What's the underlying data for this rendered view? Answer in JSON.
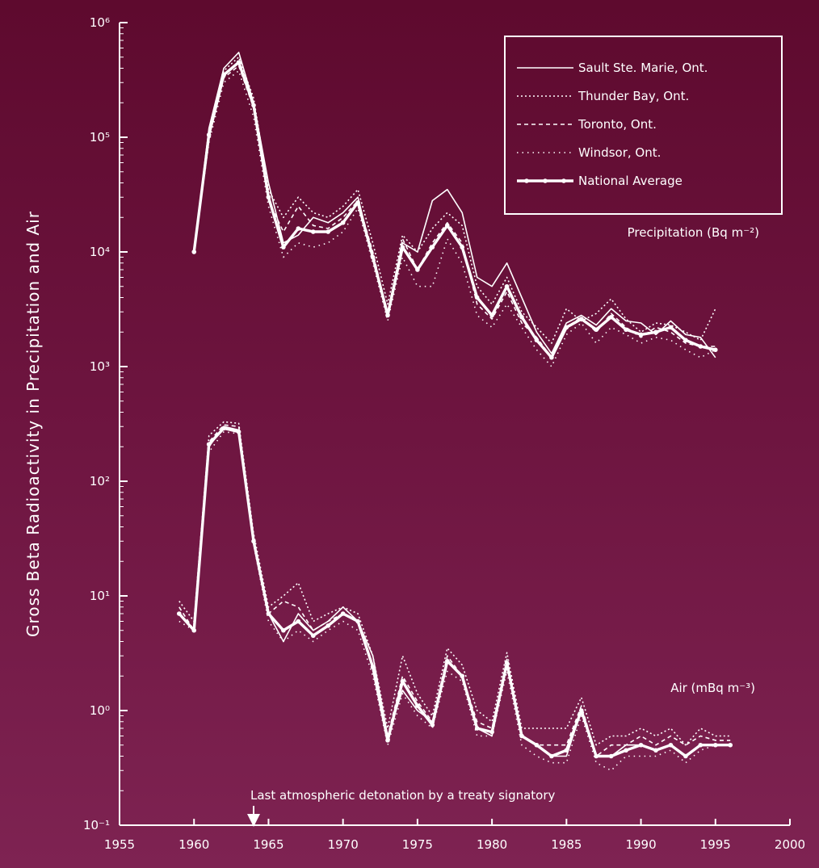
{
  "chart_data": {
    "type": "line",
    "title": "",
    "xlabel": "",
    "ylabel": "Gross Beta Radioactivity in Precipitation and Air",
    "xlim": [
      1955,
      2000
    ],
    "x_ticks": [
      1955,
      1960,
      1965,
      1970,
      1975,
      1980,
      1985,
      1990,
      1995,
      2000
    ],
    "x_tick_labels": [
      "1955",
      "1960",
      "1965",
      "1970",
      "1975",
      "1980",
      "1985",
      "1990",
      "1995",
      "2000"
    ],
    "y_scale": "log",
    "ylim": [
      0.1,
      1000000
    ],
    "y_ticks": [
      0.1,
      1,
      10,
      100,
      1000,
      10000,
      100000,
      1000000
    ],
    "y_tick_labels": [
      "10⁻¹",
      "10⁰",
      "10¹",
      "10²",
      "10³",
      "10⁴",
      "10⁵",
      "10⁶"
    ],
    "grid": false,
    "legend_position": "top-right",
    "legend": [
      "Sault Ste. Marie, Ont.",
      "Thunder Bay, Ont.",
      "Toronto, Ont.",
      "Windsor, Ont.",
      "National Average"
    ],
    "groups": [
      {
        "label": "Precipitation (Bq m⁻²)",
        "series": [
          {
            "name": "Sault Ste. Marie, Ont.",
            "x": [
              1960,
              1961,
              1962,
              1963,
              1964,
              1965,
              1966,
              1967,
              1968,
              1969,
              1970,
              1971,
              1972,
              1973,
              1974,
              1975,
              1976,
              1977,
              1978,
              1979,
              1980,
              1981,
              1982,
              1983,
              1984,
              1985,
              1986,
              1987,
              1988,
              1989,
              1990,
              1991,
              1992,
              1993,
              1994,
              1995
            ],
            "y": [
              10000,
              120000,
              400000,
              550000,
              200000,
              40000,
              12000,
              14000,
              20000,
              18000,
              22000,
              30000,
              9000,
              3000,
              12000,
              10000,
              28000,
              35000,
              22000,
              6000,
              5000,
              8000,
              4000,
              2000,
              1300,
              2400,
              2800,
              2300,
              3200,
              2500,
              2400,
              1900,
              2500,
              1900,
              1800,
              1200
            ]
          },
          {
            "name": "Thunder Bay, Ont.",
            "x": [
              1960,
              1961,
              1962,
              1963,
              1964,
              1965,
              1966,
              1967,
              1968,
              1969,
              1970,
              1971,
              1972,
              1973,
              1974,
              1975,
              1976,
              1977,
              1978,
              1979,
              1980,
              1981,
              1982,
              1983,
              1984,
              1985,
              1986,
              1987,
              1988,
              1989,
              1990,
              1991,
              1992,
              1993,
              1994,
              1995
            ],
            "y": [
              10000,
              110000,
              380000,
              500000,
              220000,
              35000,
              20000,
              30000,
              22000,
              20000,
              25000,
              35000,
              12000,
              3500,
              14000,
              10000,
              16000,
              22000,
              17000,
              5000,
              3500,
              6000,
              3000,
              2200,
              1600,
              3200,
              2500,
              2900,
              3900,
              2600,
              2000,
              2400,
              2300,
              2000,
              1700,
              3200
            ]
          },
          {
            "name": "Toronto, Ont.",
            "x": [
              1960,
              1961,
              1962,
              1963,
              1964,
              1965,
              1966,
              1967,
              1968,
              1969,
              1970,
              1971,
              1972,
              1973,
              1974,
              1975,
              1976,
              1977,
              1978,
              1979,
              1980,
              1981,
              1982,
              1983,
              1984,
              1985,
              1986,
              1987,
              1988,
              1989,
              1990,
              1991,
              1992,
              1993,
              1994,
              1995
            ],
            "y": [
              10000,
              100000,
              330000,
              420000,
              180000,
              28000,
              15000,
              25000,
              17000,
              16000,
              20000,
              28000,
              10000,
              2800,
              13000,
              7000,
              12000,
              18000,
              12000,
              3500,
              2600,
              4500,
              2400,
              1800,
              1200,
              2200,
              2700,
              2000,
              2900,
              2200,
              1800,
              2200,
              2000,
              1600,
              1500,
              1500
            ]
          },
          {
            "name": "Windsor, Ont.",
            "x": [
              1960,
              1961,
              1962,
              1963,
              1964,
              1965,
              1966,
              1967,
              1968,
              1969,
              1970,
              1971,
              1972,
              1973,
              1974,
              1975,
              1976,
              1977,
              1978,
              1979,
              1980,
              1981,
              1982,
              1983,
              1984,
              1985,
              1986,
              1987,
              1988,
              1989,
              1990,
              1991,
              1992,
              1993,
              1994,
              1995
            ],
            "y": [
              10000,
              90000,
              300000,
              380000,
              150000,
              25000,
              9000,
              12000,
              11000,
              12000,
              15000,
              24000,
              8000,
              2500,
              9000,
              5000,
              5000,
              13000,
              8000,
              2800,
              2200,
              3500,
              2200,
              1400,
              1000,
              1900,
              2400,
              1600,
              2200,
              1900,
              1600,
              1800,
              1700,
              1400,
              1200,
              1400
            ]
          },
          {
            "name": "National Average",
            "x": [
              1960,
              1961,
              1962,
              1963,
              1964,
              1965,
              1966,
              1967,
              1968,
              1969,
              1970,
              1971,
              1972,
              1973,
              1974,
              1975,
              1976,
              1977,
              1978,
              1979,
              1980,
              1981,
              1982,
              1983,
              1984,
              1985,
              1986,
              1987,
              1988,
              1989,
              1990,
              1991,
              1992,
              1993,
              1994,
              1995
            ],
            "y": [
              10000,
              105000,
              350000,
              450000,
              190000,
              30000,
              11000,
              16000,
              15000,
              15000,
              18000,
              27000,
              9000,
              2800,
              11000,
              7000,
              11000,
              17000,
              11000,
              4000,
              2800,
              5000,
              2700,
              1700,
              1200,
              2200,
              2600,
              2100,
              2700,
              2100,
              1900,
              2000,
              2200,
              1700,
              1500,
              1400
            ]
          }
        ]
      },
      {
        "label": "Air (mBq m⁻³)",
        "series": [
          {
            "name": "Sault Ste. Marie, Ont.",
            "x": [
              1959,
              1960,
              1961,
              1962,
              1963,
              1964,
              1965,
              1966,
              1967,
              1968,
              1969,
              1970,
              1971,
              1972,
              1973,
              1974,
              1975,
              1976,
              1977,
              1978,
              1979,
              1980,
              1981,
              1982,
              1983,
              1984,
              1985,
              1986,
              1987,
              1988,
              1989,
              1990,
              1991,
              1992,
              1993,
              1994,
              1995,
              1996
            ],
            "y": [
              7,
              5,
              200,
              300,
              280,
              30,
              7,
              4,
              7,
              5,
              6,
              8,
              6,
              3,
              0.6,
              1.5,
              1,
              0.8,
              2.8,
              2,
              0.7,
              0.6,
              2.5,
              0.6,
              0.5,
              0.4,
              0.4,
              1,
              0.4,
              0.4,
              0.5,
              0.5,
              0.45,
              0.5,
              0.4,
              0.5,
              0.5,
              0.5
            ]
          },
          {
            "name": "Thunder Bay, Ont.",
            "x": [
              1959,
              1960,
              1961,
              1962,
              1963,
              1964,
              1965,
              1966,
              1967,
              1968,
              1969,
              1970,
              1971,
              1972,
              1973,
              1974,
              1975,
              1976,
              1977,
              1978,
              1979,
              1980,
              1981,
              1982,
              1983,
              1984,
              1985,
              1986,
              1987,
              1988,
              1989,
              1990,
              1991,
              1992,
              1993,
              1994,
              1995,
              1996
            ],
            "y": [
              9,
              6,
              250,
              330,
              320,
              35,
              8,
              10,
              13,
              6,
              7,
              8,
              7,
              3,
              0.7,
              3,
              1.4,
              0.9,
              3.5,
              2.5,
              1,
              0.8,
              3.2,
              0.7,
              0.7,
              0.7,
              0.7,
              1.3,
              0.5,
              0.6,
              0.6,
              0.7,
              0.6,
              0.7,
              0.5,
              0.7,
              0.6,
              0.6
            ]
          },
          {
            "name": "Toronto, Ont.",
            "x": [
              1959,
              1960,
              1961,
              1962,
              1963,
              1964,
              1965,
              1966,
              1967,
              1968,
              1969,
              1970,
              1971,
              1972,
              1973,
              1974,
              1975,
              1976,
              1977,
              1978,
              1979,
              1980,
              1981,
              1982,
              1983,
              1984,
              1985,
              1986,
              1987,
              1988,
              1989,
              1990,
              1991,
              1992,
              1993,
              1994,
              1995,
              1996
            ],
            "y": [
              8,
              5,
              220,
              310,
              300,
              32,
              7,
              9,
              8,
              5,
              6,
              7,
              6,
              2.5,
              0.6,
              2,
              1.2,
              0.8,
              3,
              2,
              0.8,
              0.7,
              2.8,
              0.6,
              0.5,
              0.5,
              0.5,
              1.1,
              0.4,
              0.5,
              0.5,
              0.6,
              0.5,
              0.6,
              0.5,
              0.6,
              0.55,
              0.55
            ]
          },
          {
            "name": "Windsor, Ont.",
            "x": [
              1959,
              1960,
              1961,
              1962,
              1963,
              1964,
              1965,
              1966,
              1967,
              1968,
              1969,
              1970,
              1971,
              1972,
              1973,
              1974,
              1975,
              1976,
              1977,
              1978,
              1979,
              1980,
              1981,
              1982,
              1983,
              1984,
              1985,
              1986,
              1987,
              1988,
              1989,
              1990,
              1991,
              1992,
              1993,
              1994,
              1995,
              1996
            ],
            "y": [
              6,
              5,
              180,
              270,
              260,
              28,
              6,
              4,
              5,
              4,
              5,
              6,
              5,
              2,
              0.5,
              1.4,
              0.9,
              0.7,
              2.2,
              1.8,
              0.6,
              0.6,
              2.2,
              0.5,
              0.4,
              0.35,
              0.35,
              0.9,
              0.35,
              0.3,
              0.4,
              0.4,
              0.4,
              0.45,
              0.35,
              0.45,
              0.5,
              0.5
            ]
          },
          {
            "name": "National Average",
            "x": [
              1959,
              1960,
              1961,
              1962,
              1963,
              1964,
              1965,
              1966,
              1967,
              1968,
              1969,
              1970,
              1971,
              1972,
              1973,
              1974,
              1975,
              1976,
              1977,
              1978,
              1979,
              1980,
              1981,
              1982,
              1983,
              1984,
              1985,
              1986,
              1987,
              1988,
              1989,
              1990,
              1991,
              1992,
              1993,
              1994,
              1995,
              1996
            ],
            "y": [
              7,
              5,
              210,
              290,
              270,
              30,
              7,
              5,
              6,
              4.5,
              5.5,
              7,
              6,
              2.4,
              0.55,
              1.8,
              1.1,
              0.75,
              2.7,
              2,
              0.7,
              0.65,
              2.6,
              0.6,
              0.5,
              0.4,
              0.45,
              1,
              0.4,
              0.4,
              0.45,
              0.5,
              0.45,
              0.5,
              0.4,
              0.5,
              0.5,
              0.5
            ]
          }
        ]
      }
    ],
    "annotations": [
      {
        "text": "Last atmospheric detonation by a treaty signatory",
        "x": 1964
      }
    ]
  }
}
